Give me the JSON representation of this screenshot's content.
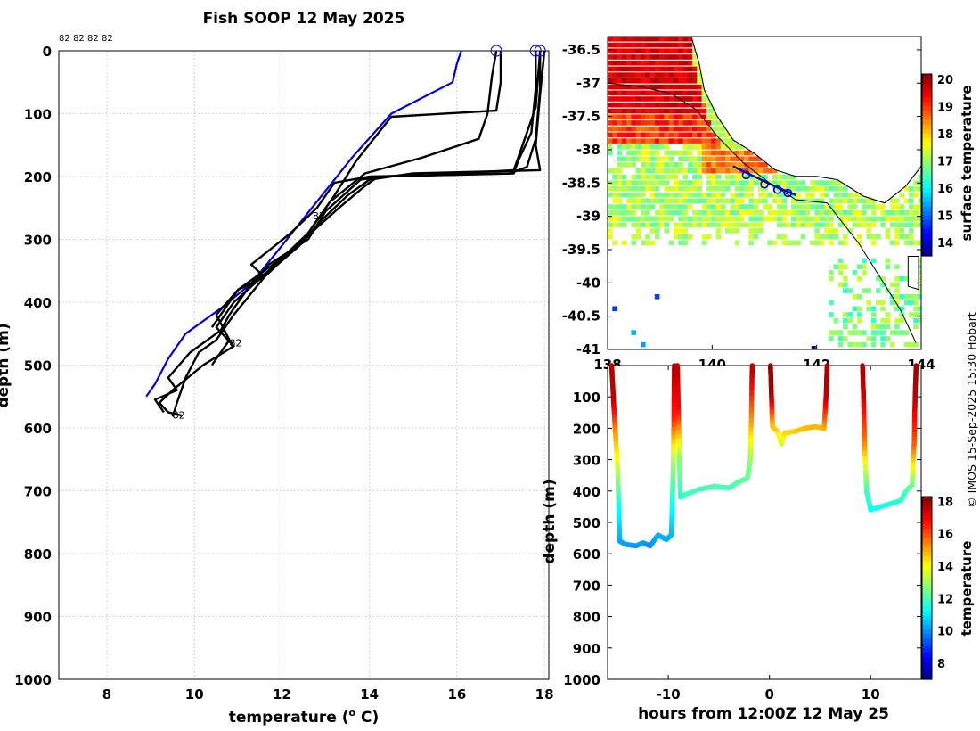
{
  "figure": {
    "title": "Fish SOOP 12 May 2025",
    "credit": "© IMOS 15-Sep-2025 15:30 Hobart",
    "profile_tags": [
      "82",
      "82",
      "82",
      "82"
    ]
  },
  "colors": {
    "profile": "#000000",
    "climatology": "#0000dd",
    "grid": "#c8c8c8",
    "land_outline": "#000000"
  },
  "chart_data": [
    {
      "type": "line",
      "name": "temperature-depth-profiles",
      "xlabel": "temperature (° C)",
      "ylabel": "depth (m)",
      "xlim": [
        6.9,
        18.1
      ],
      "ylim": [
        1000,
        0
      ],
      "xticks": [
        8,
        10,
        12,
        14,
        16,
        18
      ],
      "yticks": [
        0,
        100,
        200,
        300,
        400,
        500,
        600,
        700,
        800,
        900,
        1000
      ],
      "grid": true,
      "series": [
        {
          "name": "climatology",
          "color": "blue",
          "points": [
            [
              16.1,
              0
            ],
            [
              16.0,
              20
            ],
            [
              15.9,
              50
            ],
            [
              14.5,
              100
            ],
            [
              13.6,
              170
            ],
            [
              12.8,
              240
            ],
            [
              12.0,
              310
            ],
            [
              11.3,
              370
            ],
            [
              10.6,
              410
            ],
            [
              9.8,
              450
            ],
            [
              9.4,
              490
            ],
            [
              9.1,
              530
            ],
            [
              8.9,
              550
            ]
          ]
        },
        {
          "name": "profile-1",
          "color": "black",
          "points": [
            [
              16.9,
              0
            ],
            [
              16.8,
              40
            ],
            [
              16.7,
              100
            ],
            [
              16.5,
              140
            ],
            [
              15.2,
              170
            ],
            [
              13.9,
              195
            ],
            [
              13.1,
              240
            ],
            [
              12.5,
              300
            ],
            [
              11.6,
              360
            ],
            [
              10.9,
              420
            ],
            [
              10.5,
              460
            ],
            [
              10.1,
              480
            ],
            [
              9.8,
              520
            ],
            [
              9.6,
              560
            ],
            [
              9.5,
              582
            ]
          ]
        },
        {
          "name": "profile-2",
          "color": "black",
          "points": [
            [
              17.0,
              0
            ],
            [
              17.0,
              50
            ],
            [
              16.9,
              95
            ],
            [
              14.5,
              105
            ],
            [
              13.7,
              175
            ],
            [
              13.2,
              230
            ],
            [
              12.6,
              290
            ],
            [
              11.7,
              350
            ],
            [
              10.9,
              400
            ],
            [
              10.5,
              440
            ],
            [
              10.9,
              470
            ],
            [
              10.2,
              500
            ],
            [
              9.5,
              540
            ],
            [
              9.2,
              560
            ],
            [
              9.4,
              575
            ],
            [
              9.7,
              580
            ]
          ]
        },
        {
          "name": "profile-3",
          "color": "black",
          "points": [
            [
              17.8,
              0
            ],
            [
              17.8,
              60
            ],
            [
              17.7,
              130
            ],
            [
              17.4,
              175
            ],
            [
              17.3,
              195
            ],
            [
              14.3,
              200
            ],
            [
              13.8,
              205
            ],
            [
              13.0,
              255
            ],
            [
              12.6,
              300
            ],
            [
              11.7,
              340
            ],
            [
              11.2,
              380
            ],
            [
              10.8,
              420
            ],
            [
              10.6,
              445
            ],
            [
              9.9,
              480
            ],
            [
              9.4,
              520
            ],
            [
              9.6,
              540
            ],
            [
              9.1,
              555
            ],
            [
              9.3,
              575
            ]
          ]
        },
        {
          "name": "profile-4",
          "color": "black",
          "points": [
            [
              17.9,
              0
            ],
            [
              17.8,
              90
            ],
            [
              17.5,
              150
            ],
            [
              17.3,
              190
            ],
            [
              15.3,
              198
            ],
            [
              14.2,
              200
            ],
            [
              13.9,
              215
            ],
            [
              13.3,
              250
            ],
            [
              12.5,
              300
            ],
            [
              11.8,
              340
            ],
            [
              11.0,
              380
            ],
            [
              10.5,
              420
            ],
            [
              10.8,
              460
            ],
            [
              10.4,
              500
            ]
          ]
        },
        {
          "name": "profile-5",
          "color": "black",
          "points": [
            [
              17.9,
              0
            ],
            [
              17.9,
              60
            ],
            [
              17.8,
              140
            ],
            [
              17.6,
              185
            ],
            [
              17.2,
              195
            ],
            [
              14.0,
              200
            ],
            [
              13.2,
              210
            ],
            [
              12.8,
              250
            ],
            [
              12.2,
              290
            ],
            [
              11.3,
              340
            ],
            [
              11.6,
              360
            ],
            [
              11.0,
              380
            ],
            [
              10.8,
              400
            ],
            [
              10.4,
              440
            ]
          ]
        },
        {
          "name": "profile-6",
          "color": "black",
          "points": [
            [
              18.0,
              0
            ],
            [
              17.9,
              70
            ],
            [
              17.8,
              150
            ],
            [
              17.9,
              190
            ],
            [
              15.0,
              195
            ],
            [
              14.0,
              205
            ],
            [
              13.5,
              230
            ],
            [
              12.9,
              270
            ],
            [
              12.4,
              310
            ],
            [
              11.9,
              340
            ],
            [
              11.3,
              370
            ],
            [
              11.0,
              400
            ]
          ]
        }
      ],
      "annotations": [
        {
          "text": "82",
          "x": 12.7,
          "y": 268
        },
        {
          "text": "82",
          "x": 10.8,
          "y": 470
        },
        {
          "text": "82",
          "x": 9.5,
          "y": 585
        }
      ],
      "surface_markers": [
        16.9,
        17.8,
        17.9
      ]
    },
    {
      "type": "heatmap",
      "name": "surface-temperature-map",
      "xlabel": "",
      "ylabel": "",
      "xlim": [
        138,
        144
      ],
      "ylim": [
        -41,
        -36.3
      ],
      "xticks": [
        138,
        140,
        142,
        144
      ],
      "xticklabels": [
        "138",
        "140",
        "142",
        "144"
      ],
      "yticks": [
        -36.5,
        -37,
        -37.5,
        -38,
        -38.5,
        -39,
        -39.5,
        -40,
        -40.5,
        -41
      ],
      "yticklabels": [
        "-36.5",
        "-37",
        "-37.5",
        "-38",
        "-38.5",
        "-39",
        "-39.5",
        "-40",
        "-40.5",
        "-41"
      ],
      "colorbar": {
        "label": "surface temperature",
        "range": [
          13.5,
          20.2
        ],
        "ticks": [
          14,
          15,
          16,
          17,
          18,
          19,
          20
        ]
      },
      "track": [
        [
          140.4,
          -38.25
        ],
        [
          140.8,
          -38.4
        ],
        [
          141.2,
          -38.55
        ],
        [
          141.6,
          -38.68
        ]
      ],
      "track_markers": [
        [
          140.65,
          -38.38
        ],
        [
          141.0,
          -38.52
        ],
        [
          141.25,
          -38.6
        ],
        [
          141.45,
          -38.65
        ]
      ]
    },
    {
      "type": "scatter",
      "name": "depth-time-section",
      "xlabel": "hours from 12:00Z 12 May 25",
      "ylabel": "depth (m)",
      "xlim": [
        -16,
        15
      ],
      "ylim": [
        1000,
        0
      ],
      "xticks": [
        -10,
        0,
        10
      ],
      "yticks": [
        100,
        200,
        300,
        400,
        500,
        600,
        700,
        800,
        900,
        1000
      ],
      "colorbar": {
        "label": "temperature",
        "range": [
          7,
          18.3
        ],
        "ticks": [
          8,
          10,
          12,
          14,
          16,
          18
        ]
      },
      "series": [
        {
          "name": "tow-1",
          "points": [
            [
              -15.6,
              0,
              17.8
            ],
            [
              -15.4,
              120,
              17.5
            ],
            [
              -15.2,
              230,
              15
            ],
            [
              -15.0,
              330,
              13.5
            ],
            [
              -14.9,
              450,
              11.5
            ],
            [
              -14.8,
              560,
              10.3
            ],
            [
              -14.2,
              570,
              10.2
            ],
            [
              -13.2,
              575,
              10.1
            ],
            [
              -12.5,
              565,
              10.2
            ],
            [
              -11.8,
              575,
              10.0
            ],
            [
              -11.0,
              540,
              10.4
            ],
            [
              -10.2,
              555,
              10.3
            ],
            [
              -9.7,
              540,
              10.4
            ],
            [
              -9.6,
              430,
              11.5
            ],
            [
              -9.5,
              300,
              13
            ],
            [
              -9.45,
              160,
              16.5
            ],
            [
              -9.4,
              0,
              17.8
            ]
          ]
        },
        {
          "name": "tow-2",
          "points": [
            [
              -9.1,
              0,
              17.8
            ],
            [
              -9.0,
              150,
              16.8
            ],
            [
              -8.9,
              300,
              12.8
            ],
            [
              -8.8,
              420,
              11.8
            ],
            [
              -8.2,
              410,
              11.9
            ],
            [
              -7.0,
              395,
              12
            ],
            [
              -5.5,
              385,
              12.1
            ],
            [
              -4.0,
              390,
              12
            ],
            [
              -3.0,
              370,
              12.2
            ],
            [
              -2.2,
              360,
              12.3
            ],
            [
              -1.9,
              300,
              12.8
            ],
            [
              -1.8,
              180,
              15
            ],
            [
              -1.7,
              0,
              17.8
            ]
          ]
        },
        {
          "name": "tow-3",
          "points": [
            [
              0.1,
              0,
              18
            ],
            [
              0.2,
              100,
              17.8
            ],
            [
              0.3,
              195,
              14.8
            ],
            [
              0.8,
              210,
              14.6
            ],
            [
              1.2,
              250,
              13.4
            ],
            [
              1.5,
              215,
              14.4
            ],
            [
              2.5,
              210,
              14.6
            ],
            [
              3.5,
              200,
              14.8
            ],
            [
              4.5,
              195,
              14.9
            ],
            [
              5.4,
              200,
              14.8
            ],
            [
              5.6,
              100,
              17.5
            ],
            [
              5.7,
              0,
              17.9
            ]
          ]
        },
        {
          "name": "tow-4",
          "points": [
            [
              9.2,
              0,
              17.9
            ],
            [
              9.3,
              100,
              17.5
            ],
            [
              9.4,
              250,
              15.5
            ],
            [
              9.6,
              400,
              12
            ],
            [
              10.0,
              460,
              11.4
            ],
            [
              11.0,
              450,
              11.5
            ],
            [
              12.0,
              440,
              11.6
            ],
            [
              13.0,
              430,
              11.7
            ],
            [
              13.5,
              400,
              12
            ],
            [
              14.1,
              380,
              12.3
            ],
            [
              14.3,
              250,
              15.8
            ],
            [
              14.4,
              100,
              17.6
            ],
            [
              14.5,
              0,
              17.9
            ]
          ]
        }
      ]
    }
  ]
}
